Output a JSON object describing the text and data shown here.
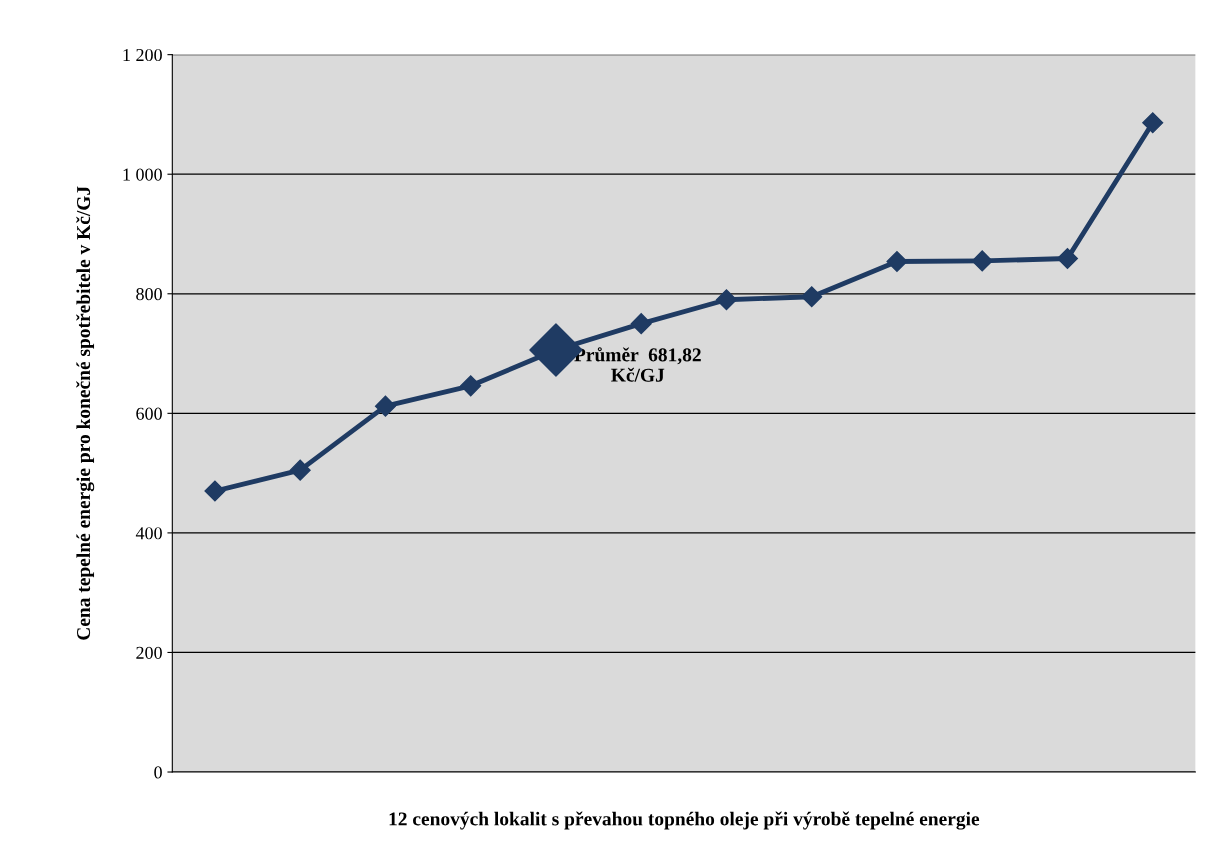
{
  "chart_data": {
    "type": "line",
    "xlabel": "12 cenových lokalit s převahou topného oleje při výrobě tepelné energie",
    "ylabel": "Cena tepelné energie pro konečné spotřebitele v Kč/GJ",
    "categories": [
      null,
      null,
      null,
      null,
      null,
      null,
      null,
      null,
      null,
      null,
      null,
      null
    ],
    "series": [
      {
        "color": "#1f3b63",
        "values": [
          470,
          505,
          612,
          646,
          706,
          750,
          790,
          795,
          854,
          855,
          859,
          1086
        ]
      },
      {
        "type": "scatter",
        "color": "#1f3b63",
        "values": [
          null,
          null,
          null,
          null,
          706,
          null,
          null,
          null,
          null,
          null,
          null,
          null
        ]
      }
    ],
    "annotations": [
      "Průměr  681,82\nKč/GJ"
    ],
    "ylim": [
      0,
      1200
    ],
    "yticks": [
      0,
      200,
      400,
      600,
      800,
      {
        "value": 1000,
        "label": "1 000"
      },
      {
        "value": 1200,
        "label": "1 200"
      }
    ],
    "grid": "y",
    "marker": "diamond",
    "line_style": "solid",
    "legend": false
  }
}
